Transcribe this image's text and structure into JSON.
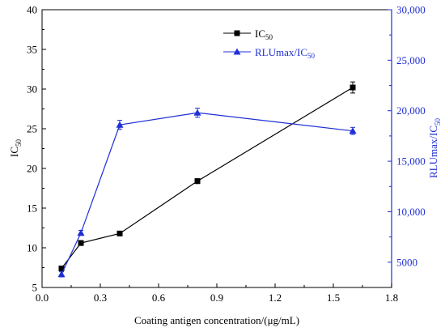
{
  "chart_data": {
    "type": "line",
    "title": "",
    "xlabel": "Coating antigen concentration/(μg/mL)",
    "ylabel_left": "IC",
    "ylabel_left_sub": "50",
    "ylabel_right": "RLUmax/IC",
    "ylabel_right_sub": "50",
    "xlim": [
      0.0,
      1.8
    ],
    "x_ticks": [
      "0.0",
      "0.3",
      "0.6",
      "0.9",
      "1.2",
      "1.5",
      "1.8"
    ],
    "ylim_left": [
      5,
      40
    ],
    "y_left_ticks": [
      "5",
      "10",
      "15",
      "20",
      "25",
      "30",
      "35",
      "40"
    ],
    "ylim_right": [
      2500,
      30000
    ],
    "y_right_ticks": [
      "5000",
      "10,000",
      "15,000",
      "20,000",
      "25,000",
      "30,000"
    ],
    "grid": false,
    "legend_position": "top-center",
    "series": [
      {
        "name": "IC",
        "name_sub": "50",
        "axis": "left",
        "color": "#000000",
        "marker": "square",
        "x": [
          0.1,
          0.2,
          0.4,
          0.8,
          1.6
        ],
        "y": [
          7.4,
          10.6,
          11.8,
          18.4,
          30.2
        ],
        "error": [
          0.3,
          0.3,
          0.2,
          0.3,
          0.7
        ]
      },
      {
        "name": "RLUmax/IC",
        "name_sub": "50",
        "axis": "right",
        "color": "#1f2fd6",
        "marker": "triangle",
        "x": [
          0.1,
          0.2,
          0.4,
          0.8,
          1.6
        ],
        "y": [
          3800,
          7900,
          18600,
          19800,
          18000
        ],
        "error": [
          250,
          250,
          450,
          450,
          350
        ]
      }
    ]
  }
}
